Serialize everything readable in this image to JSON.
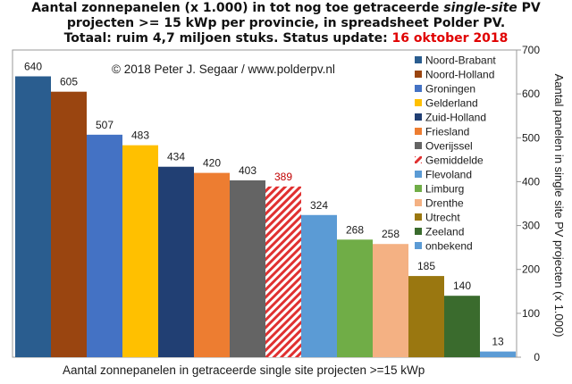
{
  "title": {
    "line1_pre": "Aantal zonnepanelen (x 1.000) in tot nog toe getraceerde ",
    "line1_italic": "single-site",
    "line1_post": " PV",
    "line2": "projecten >= 15 kWp per provincie, in spreadsheet Polder PV.",
    "line3_pre": "Totaal: ruim 4,7 miljoen stuks. Status update: ",
    "line3_red": "16 oktober 2018"
  },
  "copyright": "© 2018 Peter J. Segaar / www.polderpv.nl",
  "chart_data": {
    "type": "bar",
    "categories": [
      "Noord-Brabant",
      "Noord-Holland",
      "Groningen",
      "Gelderland",
      "Zuid-Holland",
      "Friesland",
      "Overijssel",
      "Gemiddelde",
      "Flevoland",
      "Limburg",
      "Drenthe",
      "Utrecht",
      "Zeeland",
      "onbekend"
    ],
    "values": [
      640,
      605,
      507,
      483,
      434,
      420,
      403,
      389,
      324,
      268,
      258,
      185,
      140,
      13
    ],
    "value_labels": [
      "640",
      "605",
      "507",
      "483",
      "434",
      "420",
      "403",
      "389",
      "324",
      "268",
      "258",
      "185",
      "140",
      "13"
    ],
    "colors": [
      "#2a5d8f",
      "#9a4510",
      "#4472c4",
      "#ffc000",
      "#213f73",
      "#ed7d31",
      "#646464",
      "#e03030",
      "#5b9bd5",
      "#70ad47",
      "#f4b183",
      "#9a7710",
      "#3a6b2d",
      "#5b9bd5"
    ],
    "hatched_category": "Gemiddelde",
    "highlight_label_color": "#c00000",
    "xlabel": "Aantal zonnepanelen in getraceerde single site projecten >=15 kWp",
    "ylabel": "Aantal panelen in single site PV projecten (x 1.000)",
    "ylim": [
      0,
      700
    ],
    "yticks": [
      "0",
      "100",
      "200",
      "300",
      "400",
      "500",
      "600",
      "700"
    ],
    "legend_position": "right",
    "grid": false
  }
}
